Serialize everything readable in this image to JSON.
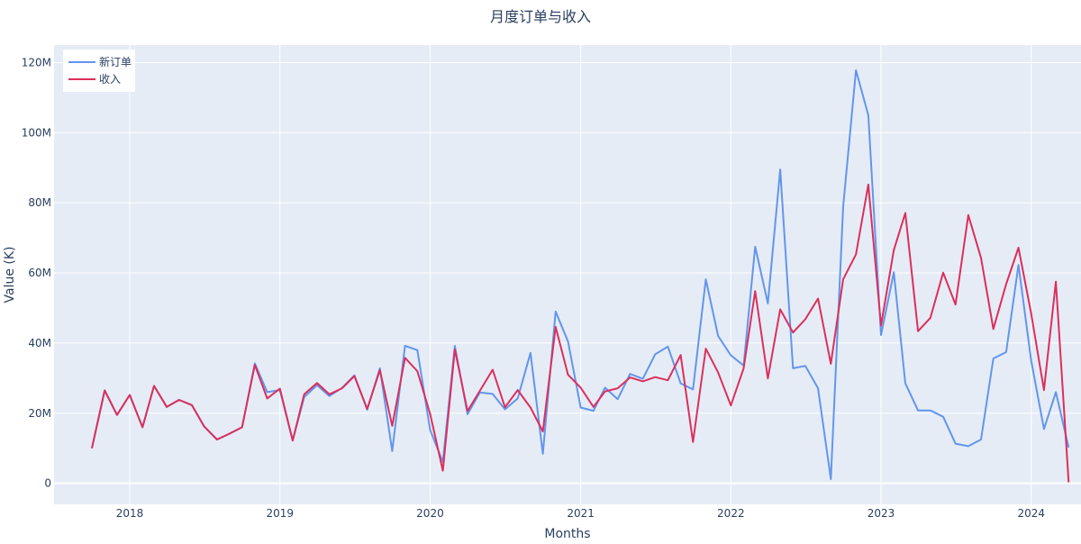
{
  "chart_data": {
    "type": "line",
    "title": "月度订单与收入",
    "xlabel": "Months",
    "ylabel": "Value (K)",
    "xlim": [
      "2017-07-01",
      "2024-05-01"
    ],
    "ylim": [
      -6,
      125
    ],
    "x_ticks": [
      {
        "date": "2018-01-01",
        "label": "2018"
      },
      {
        "date": "2019-01-01",
        "label": "2019"
      },
      {
        "date": "2020-01-01",
        "label": "2020"
      },
      {
        "date": "2021-01-01",
        "label": "2021"
      },
      {
        "date": "2022-01-01",
        "label": "2022"
      },
      {
        "date": "2023-01-01",
        "label": "2023"
      },
      {
        "date": "2024-01-01",
        "label": "2024"
      }
    ],
    "y_ticks": [
      {
        "value": 0,
        "label": "0"
      },
      {
        "value": 20,
        "label": "20M"
      },
      {
        "value": 40,
        "label": "40M"
      },
      {
        "value": 60,
        "label": "60M"
      },
      {
        "value": 80,
        "label": "80M"
      },
      {
        "value": 100,
        "label": "100M"
      },
      {
        "value": 120,
        "label": "120M"
      }
    ],
    "grid": true,
    "legend_position": "top-left",
    "background": "#E5ECF6",
    "x": [
      "2017-10",
      "2017-11",
      "2017-12",
      "2018-01",
      "2018-02",
      "2018-03",
      "2018-04",
      "2018-05",
      "2018-06",
      "2018-07",
      "2018-08",
      "2018-09",
      "2018-10",
      "2018-11",
      "2018-12",
      "2019-01",
      "2019-02",
      "2019-03",
      "2019-04",
      "2019-05",
      "2019-06",
      "2019-07",
      "2019-08",
      "2019-09",
      "2019-10",
      "2019-11",
      "2019-12",
      "2020-01",
      "2020-02",
      "2020-03",
      "2020-04",
      "2020-05",
      "2020-06",
      "2020-07",
      "2020-08",
      "2020-09",
      "2020-10",
      "2020-11",
      "2020-12",
      "2021-01",
      "2021-02",
      "2021-03",
      "2021-04",
      "2021-05",
      "2021-06",
      "2021-07",
      "2021-08",
      "2021-09",
      "2021-10",
      "2021-11",
      "2021-12",
      "2022-01",
      "2022-02",
      "2022-03",
      "2022-04",
      "2022-05",
      "2022-06",
      "2022-07",
      "2022-08",
      "2022-09",
      "2022-10",
      "2022-11",
      "2022-12",
      "2023-01",
      "2023-02",
      "2023-03",
      "2023-04",
      "2023-05",
      "2023-06",
      "2023-07",
      "2023-08",
      "2023-09",
      "2023-10",
      "2023-11",
      "2023-12",
      "2024-01",
      "2024-02",
      "2024-03",
      "2024-04"
    ],
    "series": [
      {
        "name": "新订单",
        "color": "#6495ED",
        "values": [
          10,
          26.5,
          19.5,
          25.2,
          16,
          27.8,
          21.8,
          23.8,
          22.3,
          16.2,
          12.5,
          14.2,
          16,
          34.2,
          26,
          26.6,
          12.2,
          24.6,
          28,
          24.9,
          27.2,
          30.8,
          21,
          32.8,
          9.2,
          39.2,
          38,
          15.2,
          6.1,
          39.2,
          19.7,
          25.9,
          25.5,
          21.1,
          24.2,
          37.2,
          8.4,
          49,
          40.5,
          21.6,
          20.7,
          27.3,
          24,
          31.2,
          29.8,
          36.8,
          39,
          28.5,
          26.8,
          58.2,
          42,
          36.5,
          33.6,
          67.5,
          51.3,
          89.5,
          32.8,
          33.5,
          27.1,
          1.2,
          79,
          117.8,
          105,
          42.3,
          60.2,
          28.5,
          20.8,
          20.8,
          19,
          11.3,
          10.6,
          12.5,
          35.6,
          37.4,
          62.3,
          35,
          15.5,
          26,
          10.2
        ]
      },
      {
        "name": "收入",
        "color": "#DC2F5C",
        "values": [
          10,
          26.5,
          19.5,
          25.2,
          16,
          27.8,
          21.8,
          23.8,
          22.3,
          16.2,
          12.5,
          14.2,
          16,
          33.8,
          24.2,
          27,
          12.2,
          25.4,
          28.6,
          25.4,
          27.1,
          30.6,
          21.2,
          32.3,
          16.4,
          35.8,
          32,
          19.8,
          3.6,
          38.2,
          20.6,
          26.4,
          32.4,
          21.7,
          26.6,
          21.6,
          14.8,
          44.6,
          31,
          27.3,
          21.8,
          26.2,
          27.1,
          30.2,
          29.1,
          30.3,
          29.4,
          36.6,
          11.8,
          38.4,
          31.6,
          22.2,
          32.8,
          54.8,
          29.9,
          49.6,
          43,
          46.8,
          52.7,
          34.1,
          58.2,
          65.3,
          85.2,
          45,
          66.5,
          77.1,
          43.4,
          47.2,
          60.1,
          51,
          76.5,
          64.3,
          44,
          56.8,
          67.2,
          48.4,
          26.6,
          57.5,
          0.3
        ]
      }
    ]
  }
}
